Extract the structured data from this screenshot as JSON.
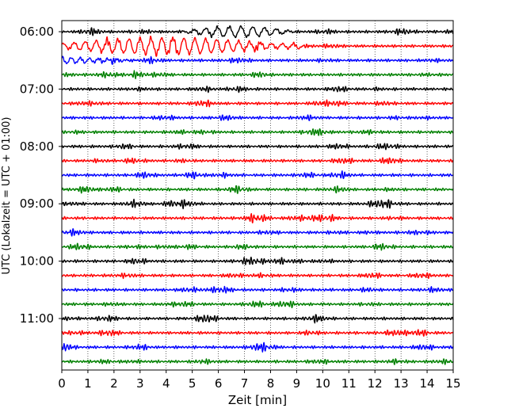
{
  "chart_data": {
    "type": "line",
    "title": "",
    "xlabel": "Zeit  [min]",
    "ylabel": "UTC (Lokalzeit = UTC + 01:00)",
    "xlim": [
      0,
      15
    ],
    "x_ticks": [
      0,
      1,
      2,
      3,
      4,
      5,
      6,
      7,
      8,
      9,
      10,
      11,
      12,
      13,
      14,
      15
    ],
    "y_tick_labels": [
      "06:00",
      "07:00",
      "08:00",
      "09:00",
      "10:00",
      "11:00"
    ],
    "grid": "vertical dotted",
    "trace_colors": [
      "#000000",
      "#ff0000",
      "#0000ff",
      "#008000"
    ],
    "traces": [
      {
        "start": "06:00",
        "event": {
          "from": 4.5,
          "to": 9.0,
          "period": 0.45
        }
      },
      {
        "start": "06:15",
        "event": {
          "from": 0.0,
          "to": 9.2,
          "period": 0.42
        }
      },
      {
        "start": "06:30",
        "event": {
          "from": 0.0,
          "to": 3.0,
          "period": 0.35
        }
      },
      {
        "start": "06:45"
      },
      {
        "start": "07:00"
      },
      {
        "start": "07:15"
      },
      {
        "start": "07:30"
      },
      {
        "start": "07:45"
      },
      {
        "start": "08:00"
      },
      {
        "start": "08:15"
      },
      {
        "start": "08:30"
      },
      {
        "start": "08:45"
      },
      {
        "start": "09:00"
      },
      {
        "start": "09:15"
      },
      {
        "start": "09:30"
      },
      {
        "start": "09:45"
      },
      {
        "start": "10:00"
      },
      {
        "start": "10:15"
      },
      {
        "start": "10:30"
      },
      {
        "start": "10:45"
      },
      {
        "start": "11:00"
      },
      {
        "start": "11:15"
      },
      {
        "start": "11:30"
      },
      {
        "start": "11:45"
      }
    ]
  }
}
